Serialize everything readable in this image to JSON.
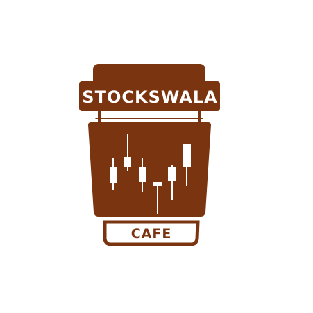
{
  "logo": {
    "brand_name": "STOCKSWALA",
    "sub_label": "CAFE",
    "icon_name": "coffee-cup-candlestick-icon",
    "colors": {
      "primary_brown": "#7a3410",
      "text_light": "#ffffff",
      "text_dark": "#7a3410",
      "background": "#ffffff"
    }
  }
}
